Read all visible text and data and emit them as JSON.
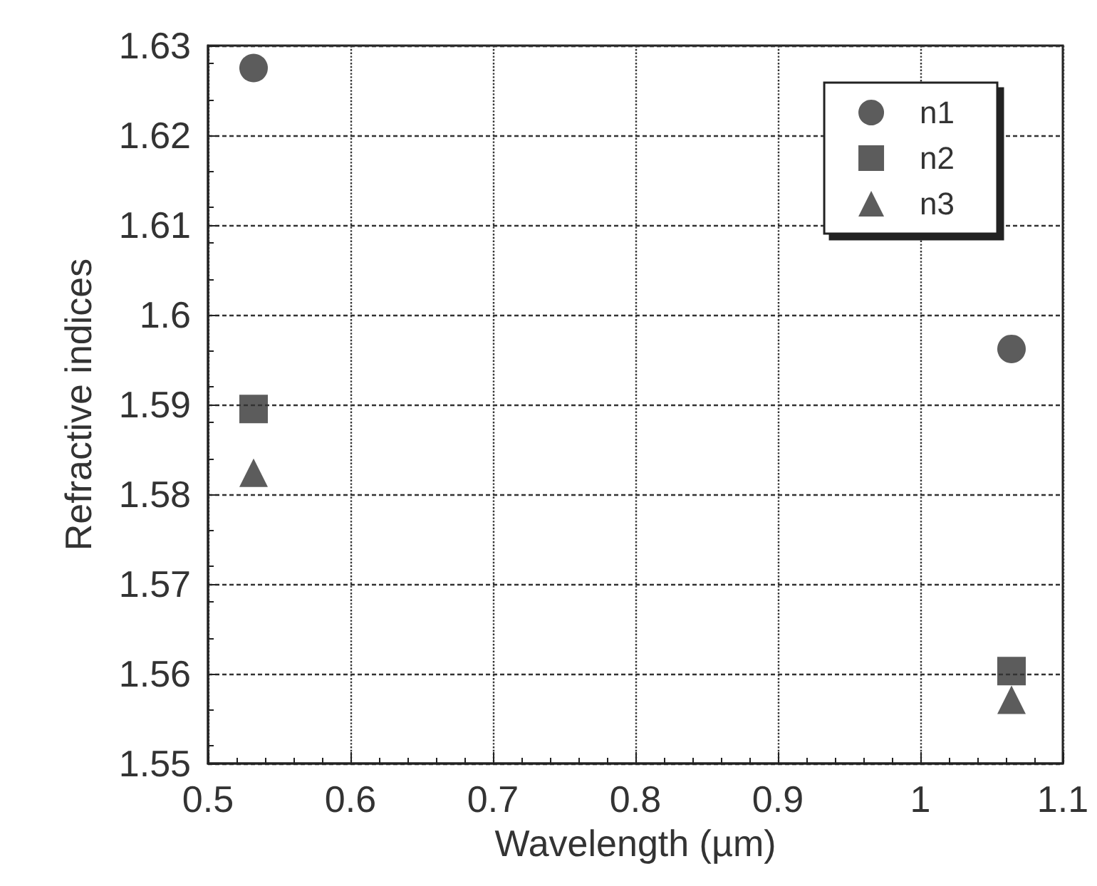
{
  "chart_data": {
    "type": "scatter",
    "xlabel": "Wavelength (µm)",
    "ylabel": "Refractive indices",
    "x": [
      0.532,
      1.064
    ],
    "series": [
      {
        "name": "n1",
        "color": "#333333",
        "marker": "circle",
        "values": [
          1.6275,
          1.5962
        ]
      },
      {
        "name": "n2",
        "color": "#333333",
        "marker": "square",
        "values": [
          1.5895,
          1.5603
        ]
      },
      {
        "name": "n3",
        "color": "#333333",
        "marker": "triangle",
        "values": [
          1.5824,
          1.5571
        ]
      }
    ],
    "xlim": [
      0.5,
      1.1
    ],
    "xticks": [
      {
        "value": 0.5,
        "label": "0.5"
      },
      {
        "value": 0.6,
        "label": "0.6"
      },
      {
        "value": 0.7,
        "label": "0.7"
      },
      {
        "value": 0.8,
        "label": "0.8"
      },
      {
        "value": 0.9,
        "label": "0.9"
      },
      {
        "value": 1,
        "label": "1"
      },
      {
        "value": 1.1,
        "label": "1.1"
      }
    ],
    "ylim": [
      1.55,
      1.63
    ],
    "yticks": [
      {
        "value": 1.55,
        "label": "1.55"
      },
      {
        "value": 1.56,
        "label": "1.56"
      },
      {
        "value": 1.57,
        "label": "1.57"
      },
      {
        "value": 1.58,
        "label": "1.58"
      },
      {
        "value": 1.59,
        "label": "1.59"
      },
      {
        "value": 1.6,
        "label": "1.6"
      },
      {
        "value": 1.61,
        "label": "1.61"
      },
      {
        "value": 1.62,
        "label": "1.62"
      },
      {
        "value": 1.63,
        "label": "1.63"
      }
    ],
    "grid": true,
    "legend": "top right"
  }
}
